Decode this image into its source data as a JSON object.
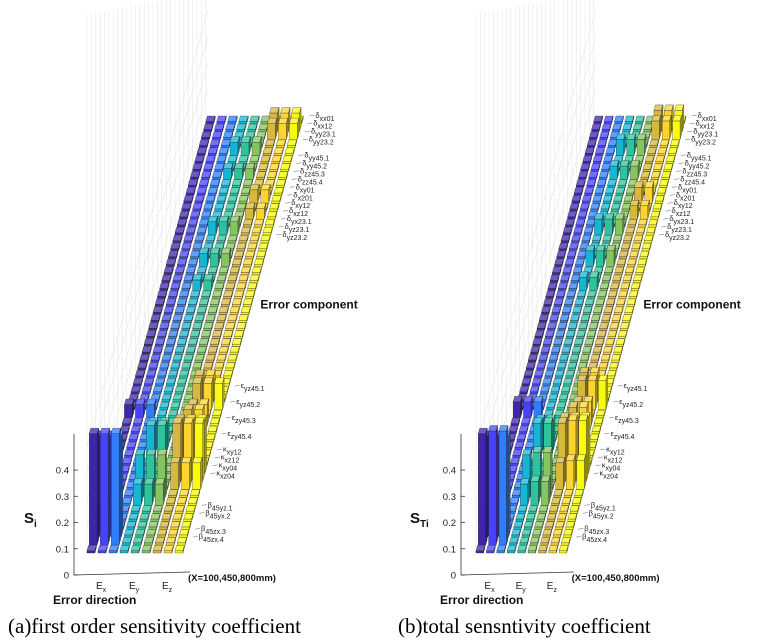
{
  "figure": {
    "colormap": [
      "#3e26a8",
      "#4743f8",
      "#2f7dfb",
      "#16b5d2",
      "#2dc49d",
      "#84c560",
      "#d7b83d",
      "#fbd52e",
      "#f9fb0e"
    ],
    "common": {
      "x_categories": [
        "Ex",
        "Ey",
        "Ez"
      ],
      "x_label": "Error direction",
      "y_label": "Error component",
      "condition": "(X=100,450,800mm)",
      "z_ticks": [
        "0",
        "0.1",
        "0.2",
        "0.3",
        "0.4"
      ],
      "error_component_labels": [
        {
          "sym": "δ",
          "sub": "xx01"
        },
        {
          "sym": "δ",
          "sub": "xx12"
        },
        {
          "sym": "δ",
          "sub": "yy23.1"
        },
        {
          "sym": "δ",
          "sub": "yy23.2"
        },
        {
          "sym": "δ",
          "sub": "yy45.1"
        },
        {
          "sym": "δ",
          "sub": "yy45.2"
        },
        {
          "sym": "δ",
          "sub": "zz45.3"
        },
        {
          "sym": "δ",
          "sub": "zz45.4"
        },
        {
          "sym": "δ",
          "sub": "xy01"
        },
        {
          "sym": "δ",
          "sub": "x201"
        },
        {
          "sym": "δ",
          "sub": "xy12"
        },
        {
          "sym": "δ",
          "sub": "xz12"
        },
        {
          "sym": "δ",
          "sub": "yx23.1"
        },
        {
          "sym": "δ",
          "sub": "yz23.1"
        },
        {
          "sym": "δ",
          "sub": "yz23.2"
        },
        {
          "sym": "ε",
          "sub": "yz45.1"
        },
        {
          "sym": "ε",
          "sub": "yz45.2"
        },
        {
          "sym": "ε",
          "sub": "zy45.3"
        },
        {
          "sym": "ε",
          "sub": "zy45.4"
        },
        {
          "sym": "κ",
          "sub": "xy12"
        },
        {
          "sym": "κ",
          "sub": "xz12"
        },
        {
          "sym": "κ",
          "sub": "xy04"
        },
        {
          "sym": "κ",
          "sub": "xz04"
        },
        {
          "sym": "β",
          "sub": "45yz.1"
        },
        {
          "sym": "β",
          "sub": "45yx.2"
        },
        {
          "sym": "β",
          "sub": "45zx.3"
        },
        {
          "sym": "β",
          "sub": "45zx.4"
        }
      ]
    }
  },
  "chart_data": [
    {
      "type": "bar3d",
      "caption": "(a)first order sensitivity coefficient",
      "zlabel": "S",
      "zlabel_sub": "i",
      "zlim": [
        0,
        0.4
      ],
      "x": [
        "Ex",
        "Ey",
        "Ez"
      ],
      "columns_per_direction": 3,
      "rows": 55,
      "bars": [
        {
          "row": 1,
          "col": 0,
          "value": 0.42
        },
        {
          "row": 1,
          "col": 1,
          "value": 0.42
        },
        {
          "row": 1,
          "col": 2,
          "value": 0.42
        },
        {
          "row": 2,
          "col": 0,
          "value": 0.38
        },
        {
          "row": 2,
          "col": 1,
          "value": 0.38
        },
        {
          "row": 2,
          "col": 2,
          "value": 0.38
        },
        {
          "row": 6,
          "col": 3,
          "value": 0.08
        },
        {
          "row": 6,
          "col": 4,
          "value": 0.08
        },
        {
          "row": 6,
          "col": 5,
          "value": 0.08
        },
        {
          "row": 7,
          "col": 3,
          "value": 0.16
        },
        {
          "row": 7,
          "col": 4,
          "value": 0.16
        },
        {
          "row": 7,
          "col": 5,
          "value": 0.16
        },
        {
          "row": 8,
          "col": 6,
          "value": 0.1
        },
        {
          "row": 8,
          "col": 7,
          "value": 0.1
        },
        {
          "row": 8,
          "col": 8,
          "value": 0.1
        },
        {
          "row": 9,
          "col": 6,
          "value": 0.22
        },
        {
          "row": 9,
          "col": 7,
          "value": 0.22
        },
        {
          "row": 9,
          "col": 8,
          "value": 0.22
        },
        {
          "row": 10,
          "col": 6,
          "value": 0.2
        },
        {
          "row": 10,
          "col": 7,
          "value": 0.2
        },
        {
          "row": 10,
          "col": 8,
          "value": 0.2
        },
        {
          "row": 12,
          "col": 3,
          "value": 0.12
        },
        {
          "row": 12,
          "col": 4,
          "value": 0.12
        },
        {
          "row": 13,
          "col": 3,
          "value": 0.1
        },
        {
          "row": 13,
          "col": 4,
          "value": 0.1
        },
        {
          "row": 14,
          "col": 6,
          "value": 0.12
        },
        {
          "row": 14,
          "col": 7,
          "value": 0.12
        },
        {
          "row": 16,
          "col": 6,
          "value": 0.08
        },
        {
          "row": 16,
          "col": 7,
          "value": 0.08
        },
        {
          "row": 17,
          "col": 0,
          "value": 0.05
        },
        {
          "row": 17,
          "col": 1,
          "value": 0.05
        },
        {
          "row": 17,
          "col": 2,
          "value": 0.05
        },
        {
          "row": 18,
          "col": 6,
          "value": 0.1
        },
        {
          "row": 18,
          "col": 7,
          "value": 0.1
        },
        {
          "row": 18,
          "col": 8,
          "value": 0.1
        },
        {
          "row": 19,
          "col": 6,
          "value": 0.1
        },
        {
          "row": 19,
          "col": 7,
          "value": 0.1
        },
        {
          "row": 33,
          "col": 3,
          "value": 0.04
        },
        {
          "row": 33,
          "col": 4,
          "value": 0.04
        },
        {
          "row": 36,
          "col": 3,
          "value": 0.05
        },
        {
          "row": 36,
          "col": 4,
          "value": 0.05
        },
        {
          "row": 36,
          "col": 5,
          "value": 0.05
        },
        {
          "row": 40,
          "col": 3,
          "value": 0.05
        },
        {
          "row": 40,
          "col": 4,
          "value": 0.05
        },
        {
          "row": 40,
          "col": 5,
          "value": 0.05
        },
        {
          "row": 42,
          "col": 6,
          "value": 0.04
        },
        {
          "row": 42,
          "col": 7,
          "value": 0.04
        },
        {
          "row": 44,
          "col": 6,
          "value": 0.05
        },
        {
          "row": 44,
          "col": 7,
          "value": 0.05
        },
        {
          "row": 47,
          "col": 3,
          "value": 0.04
        },
        {
          "row": 47,
          "col": 4,
          "value": 0.04
        },
        {
          "row": 47,
          "col": 5,
          "value": 0.04
        },
        {
          "row": 50,
          "col": 3,
          "value": 0.05
        },
        {
          "row": 50,
          "col": 4,
          "value": 0.05
        },
        {
          "row": 50,
          "col": 5,
          "value": 0.05
        },
        {
          "row": 52,
          "col": 6,
          "value": 0.06
        },
        {
          "row": 52,
          "col": 7,
          "value": 0.06
        },
        {
          "row": 52,
          "col": 8,
          "value": 0.06
        },
        {
          "row": 53,
          "col": 6,
          "value": 0.07
        },
        {
          "row": 53,
          "col": 7,
          "value": 0.07
        },
        {
          "row": 53,
          "col": 8,
          "value": 0.07
        }
      ]
    },
    {
      "type": "bar3d",
      "caption": "(b)total sensntivity coefficient",
      "zlabel": "S",
      "zlabel_sub": "Ti",
      "zlim": [
        0,
        0.4
      ],
      "x": [
        "Ex",
        "Ey",
        "Ez"
      ],
      "columns_per_direction": 3,
      "rows": 55,
      "bars": [
        {
          "row": 1,
          "col": 0,
          "value": 0.42
        },
        {
          "row": 1,
          "col": 1,
          "value": 0.43
        },
        {
          "row": 1,
          "col": 2,
          "value": 0.43
        },
        {
          "row": 2,
          "col": 0,
          "value": 0.38
        },
        {
          "row": 2,
          "col": 1,
          "value": 0.38
        },
        {
          "row": 2,
          "col": 2,
          "value": 0.38
        },
        {
          "row": 6,
          "col": 3,
          "value": 0.08
        },
        {
          "row": 6,
          "col": 4,
          "value": 0.09
        },
        {
          "row": 6,
          "col": 5,
          "value": 0.09
        },
        {
          "row": 7,
          "col": 3,
          "value": 0.16
        },
        {
          "row": 7,
          "col": 4,
          "value": 0.17
        },
        {
          "row": 7,
          "col": 5,
          "value": 0.17
        },
        {
          "row": 8,
          "col": 6,
          "value": 0.1
        },
        {
          "row": 8,
          "col": 7,
          "value": 0.11
        },
        {
          "row": 8,
          "col": 8,
          "value": 0.11
        },
        {
          "row": 9,
          "col": 6,
          "value": 0.22
        },
        {
          "row": 9,
          "col": 7,
          "value": 0.23
        },
        {
          "row": 9,
          "col": 8,
          "value": 0.23
        },
        {
          "row": 10,
          "col": 6,
          "value": 0.21
        },
        {
          "row": 10,
          "col": 7,
          "value": 0.21
        },
        {
          "row": 10,
          "col": 8,
          "value": 0.21
        },
        {
          "row": 12,
          "col": 3,
          "value": 0.13
        },
        {
          "row": 12,
          "col": 4,
          "value": 0.13
        },
        {
          "row": 13,
          "col": 3,
          "value": 0.11
        },
        {
          "row": 13,
          "col": 4,
          "value": 0.11
        },
        {
          "row": 14,
          "col": 6,
          "value": 0.13
        },
        {
          "row": 14,
          "col": 7,
          "value": 0.13
        },
        {
          "row": 16,
          "col": 6,
          "value": 0.09
        },
        {
          "row": 16,
          "col": 7,
          "value": 0.09
        },
        {
          "row": 17,
          "col": 0,
          "value": 0.06
        },
        {
          "row": 17,
          "col": 1,
          "value": 0.06
        },
        {
          "row": 17,
          "col": 2,
          "value": 0.06
        },
        {
          "row": 18,
          "col": 6,
          "value": 0.11
        },
        {
          "row": 18,
          "col": 7,
          "value": 0.11
        },
        {
          "row": 18,
          "col": 8,
          "value": 0.11
        },
        {
          "row": 19,
          "col": 6,
          "value": 0.11
        },
        {
          "row": 19,
          "col": 7,
          "value": 0.11
        },
        {
          "row": 33,
          "col": 3,
          "value": 0.05
        },
        {
          "row": 33,
          "col": 4,
          "value": 0.05
        },
        {
          "row": 36,
          "col": 3,
          "value": 0.06
        },
        {
          "row": 36,
          "col": 4,
          "value": 0.06
        },
        {
          "row": 36,
          "col": 5,
          "value": 0.06
        },
        {
          "row": 40,
          "col": 3,
          "value": 0.06
        },
        {
          "row": 40,
          "col": 4,
          "value": 0.06
        },
        {
          "row": 40,
          "col": 5,
          "value": 0.06
        },
        {
          "row": 42,
          "col": 6,
          "value": 0.05
        },
        {
          "row": 42,
          "col": 7,
          "value": 0.05
        },
        {
          "row": 44,
          "col": 6,
          "value": 0.06
        },
        {
          "row": 44,
          "col": 7,
          "value": 0.06
        },
        {
          "row": 47,
          "col": 3,
          "value": 0.05
        },
        {
          "row": 47,
          "col": 4,
          "value": 0.05
        },
        {
          "row": 47,
          "col": 5,
          "value": 0.05
        },
        {
          "row": 50,
          "col": 3,
          "value": 0.06
        },
        {
          "row": 50,
          "col": 4,
          "value": 0.06
        },
        {
          "row": 50,
          "col": 5,
          "value": 0.06
        },
        {
          "row": 52,
          "col": 6,
          "value": 0.07
        },
        {
          "row": 52,
          "col": 7,
          "value": 0.07
        },
        {
          "row": 52,
          "col": 8,
          "value": 0.07
        },
        {
          "row": 53,
          "col": 6,
          "value": 0.08
        },
        {
          "row": 53,
          "col": 7,
          "value": 0.08
        },
        {
          "row": 53,
          "col": 8,
          "value": 0.08
        }
      ]
    }
  ]
}
